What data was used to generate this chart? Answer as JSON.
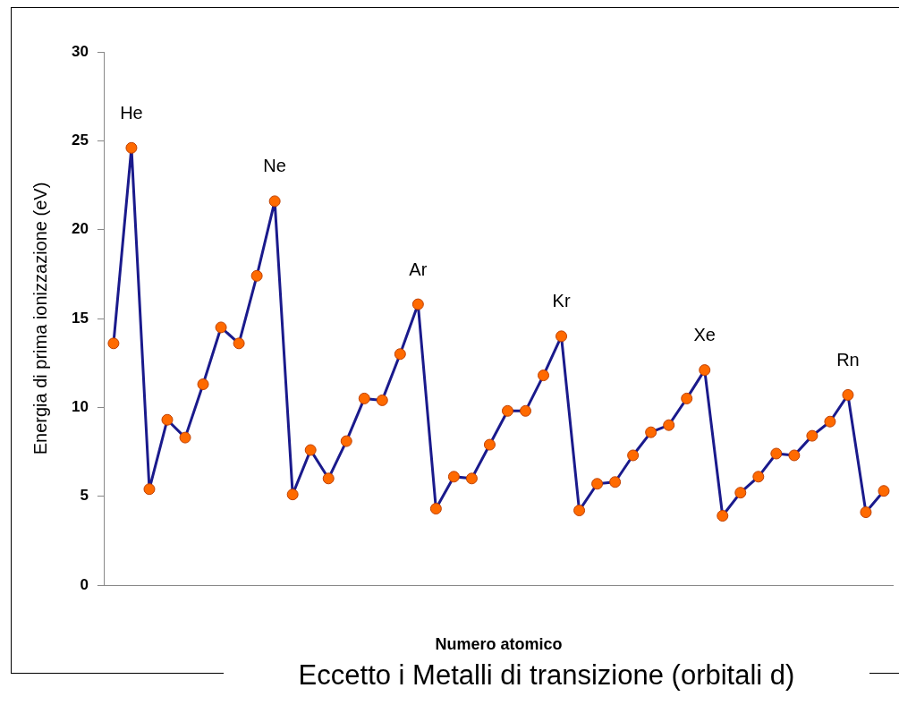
{
  "chart_data": {
    "type": "line",
    "xlabel": "Numero atomico",
    "ylabel": "Energia di prima ionizzazione (eV)",
    "annotations": [
      "Eccetto i Metalli di transizione (orbitali d)"
    ],
    "categories": [
      null,
      null,
      null,
      null,
      null,
      null,
      null,
      null,
      null,
      null,
      null,
      null,
      null,
      null,
      null,
      null,
      null,
      null,
      null,
      null,
      null,
      null,
      null,
      null,
      null,
      null,
      null,
      null,
      null,
      null,
      null,
      null,
      null,
      null,
      null,
      null,
      null,
      null,
      null,
      null,
      null,
      null,
      null,
      null
    ],
    "series": [
      {
        "color": "#1a1a8c",
        "values": [
          13.6,
          24.6,
          5.4,
          9.3,
          8.3,
          11.3,
          14.5,
          13.6,
          17.4,
          21.6,
          5.1,
          7.6,
          6.0,
          8.1,
          10.5,
          10.4,
          13.0,
          15.8,
          4.3,
          6.1,
          6.0,
          7.9,
          9.8,
          9.8,
          11.8,
          14.0,
          4.2,
          5.7,
          5.8,
          7.3,
          8.6,
          9.0,
          10.5,
          12.1,
          3.9,
          5.2,
          6.1,
          7.4,
          7.3,
          8.4,
          9.2,
          10.7,
          4.1,
          5.3
        ],
        "value_labels": [
          null,
          "He",
          null,
          null,
          null,
          null,
          null,
          null,
          null,
          "Ne",
          null,
          null,
          null,
          null,
          null,
          null,
          null,
          "Ar",
          null,
          null,
          null,
          null,
          null,
          null,
          null,
          "Kr",
          null,
          null,
          null,
          null,
          null,
          null,
          null,
          "Xe",
          null,
          null,
          null,
          null,
          null,
          null,
          null,
          "Rn",
          null,
          null
        ]
      }
    ],
    "ylim": [
      0,
      30
    ],
    "yticks": [
      0,
      5,
      10,
      15,
      20,
      25,
      30
    ],
    "grid": false,
    "legend": false,
    "marker": "circle",
    "line_style": "solid"
  }
}
